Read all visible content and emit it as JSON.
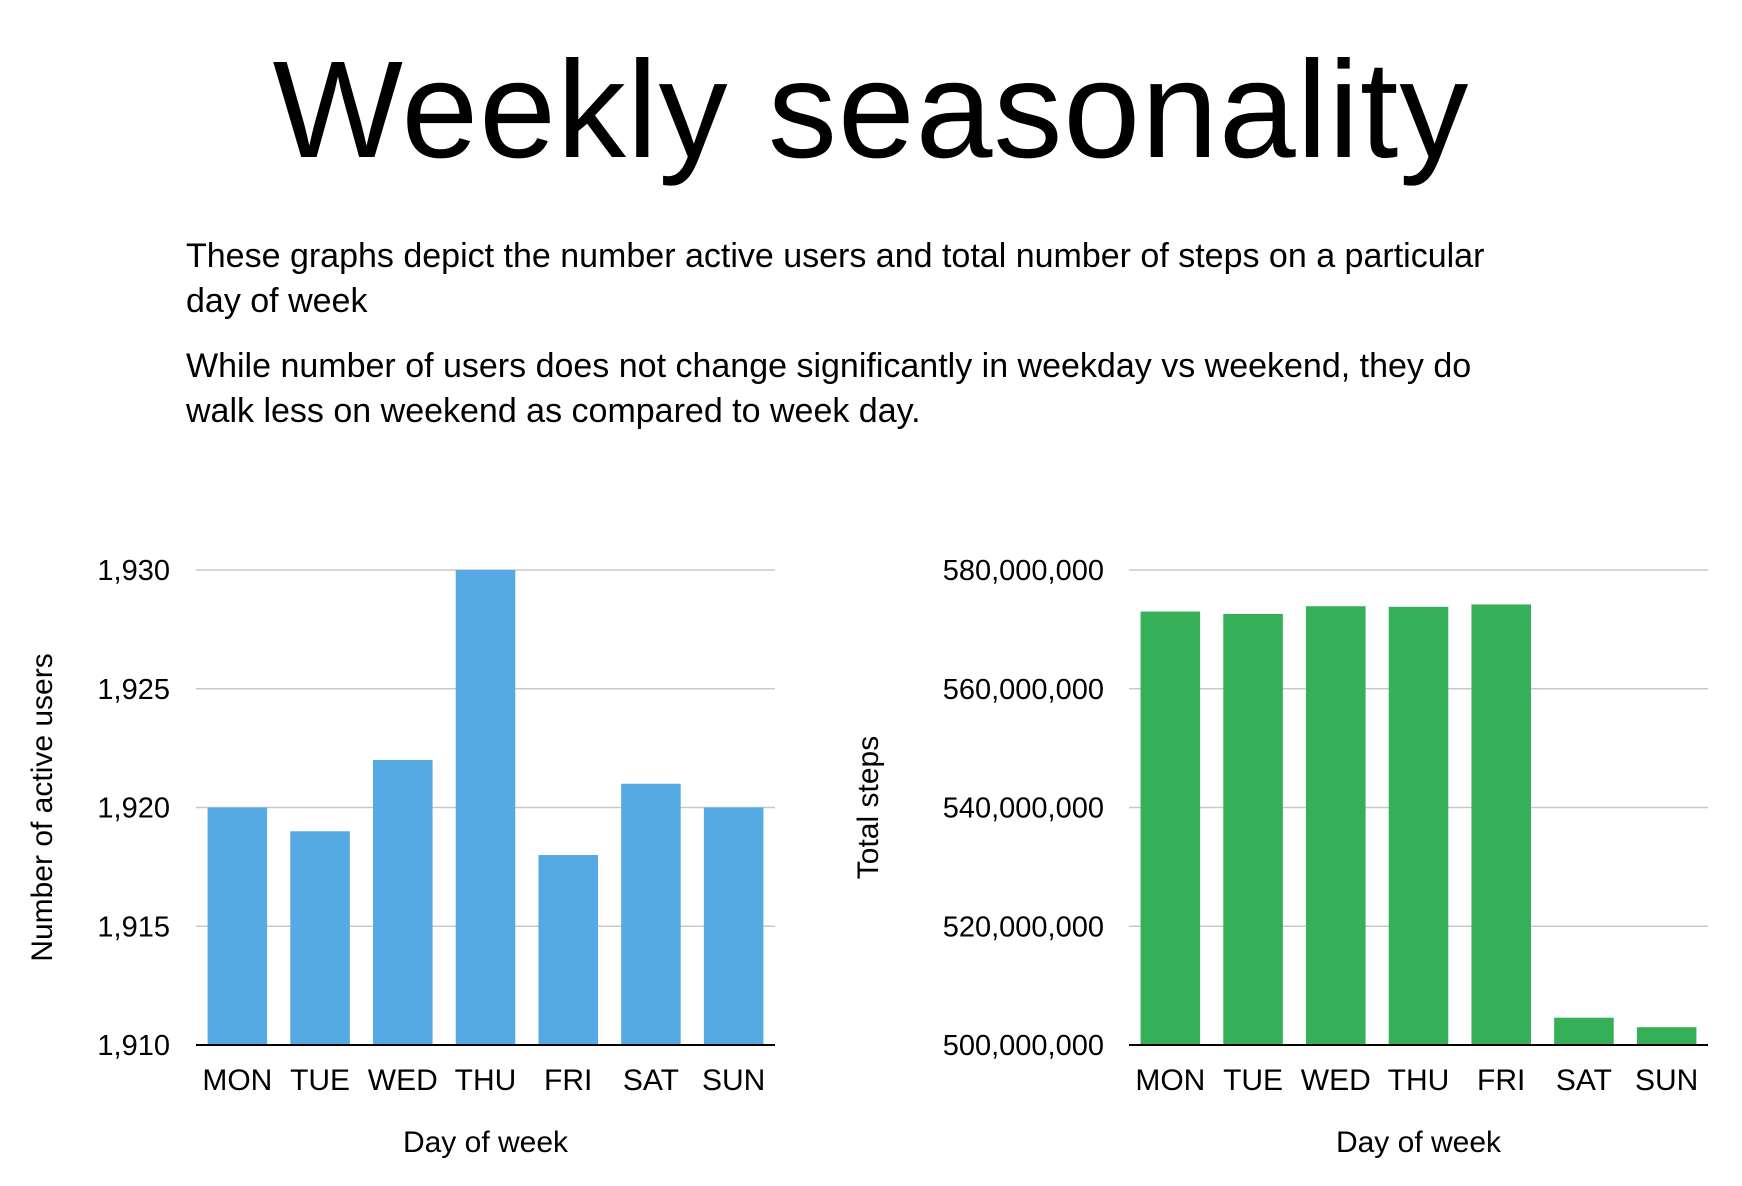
{
  "title": "Weekly seasonality",
  "paragraphs": [
    "These graphs depict the number active users and total number of steps on a particular day of week",
    "While number of users does not change significantly in weekday vs weekend, they do walk less on weekend as compared to week day."
  ],
  "chart_data": [
    {
      "type": "bar",
      "categories": [
        "MON",
        "TUE",
        "WED",
        "THU",
        "FRI",
        "SAT",
        "SUN"
      ],
      "values": [
        1920,
        1919,
        1922,
        1930,
        1918,
        1921,
        1920
      ],
      "ylim": [
        1910,
        1930
      ],
      "yticks": [
        1910,
        1915,
        1920,
        1925,
        1930
      ],
      "ytick_labels": [
        "1,910",
        "1,915",
        "1,920",
        "1,925",
        "1,930"
      ],
      "xlabel": "Day of week",
      "ylabel": "Number of active users",
      "color": "#55AAE4",
      "grid": true
    },
    {
      "type": "bar",
      "categories": [
        "MON",
        "TUE",
        "WED",
        "THU",
        "FRI",
        "SAT",
        "SUN"
      ],
      "values": [
        573000000,
        572600000,
        573900000,
        573800000,
        574200000,
        504600000,
        503000000
      ],
      "ylim": [
        500000000,
        580000000
      ],
      "yticks": [
        500000000,
        520000000,
        540000000,
        560000000,
        580000000
      ],
      "ytick_labels": [
        "500,000,000",
        "520,000,000",
        "540,000,000",
        "560,000,000",
        "580,000,000"
      ],
      "xlabel": "Day of week",
      "ylabel": "Total steps",
      "color": "#35AF58",
      "grid": true
    }
  ]
}
